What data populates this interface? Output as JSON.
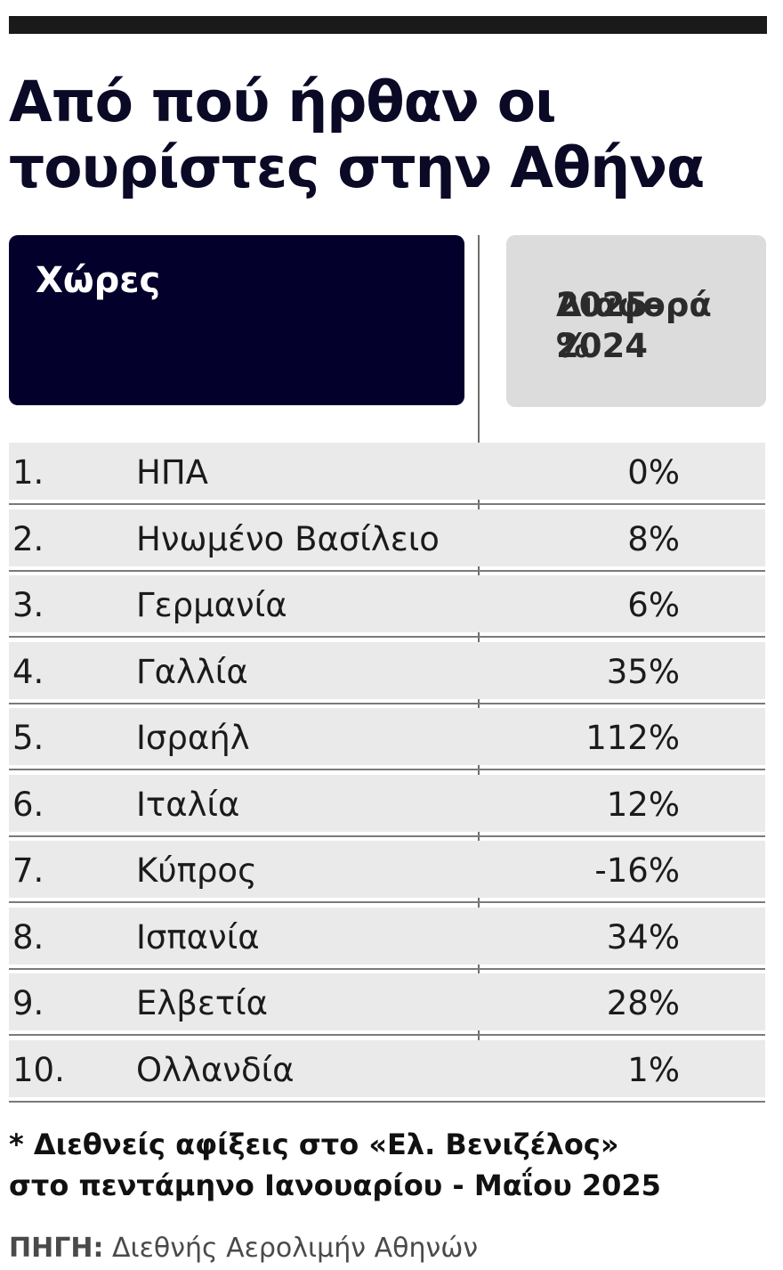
{
  "chart_data": {
    "type": "table",
    "title_line1": "Από πού ήρθαν οι",
    "title_line2": "τουρίστες στην Αθήνα",
    "header_country": "Χώρες",
    "header_change_line1": "Διαφορά %",
    "header_change_line2": "2025-2024",
    "rows": [
      {
        "rank": "1.",
        "country": "ΗΠΑ",
        "change": "0%",
        "value": 0
      },
      {
        "rank": "2.",
        "country": "Ηνωμένο Βασίλειο",
        "change": "8%",
        "value": 8
      },
      {
        "rank": "3.",
        "country": "Γερμανία",
        "change": "6%",
        "value": 6
      },
      {
        "rank": "4.",
        "country": "Γαλλία",
        "change": "35%",
        "value": 35
      },
      {
        "rank": "5.",
        "country": "Ισραήλ",
        "change": "112%",
        "value": 112
      },
      {
        "rank": "6.",
        "country": "Ιταλία",
        "change": "12%",
        "value": 12
      },
      {
        "rank": "7.",
        "country": "Κύπρος",
        "change": "-16%",
        "value": -16
      },
      {
        "rank": "8.",
        "country": "Ισπανία",
        "change": "34%",
        "value": 34
      },
      {
        "rank": "9.",
        "country": "Ελβετία",
        "change": "28%",
        "value": 28
      },
      {
        "rank": "10.",
        "country": "Ολλανδία",
        "change": "1%",
        "value": 1
      }
    ],
    "footnote_line1": "* Διεθνείς αφίξεις στο «Ελ. Βενιζέλος»",
    "footnote_line2": "στο πεντάμηνο Ιανουαρίου - Μαΐου 2025",
    "source_label": "ΠΗΓΗ:",
    "source_text": "Διεθνής Αερολιμήν Αθηνών"
  },
  "colors": {
    "header_dark": "#03012b",
    "header_grey": "#dcdcdc",
    "row_bg": "#eaeaea",
    "top_bar": "#1a1a1a"
  }
}
